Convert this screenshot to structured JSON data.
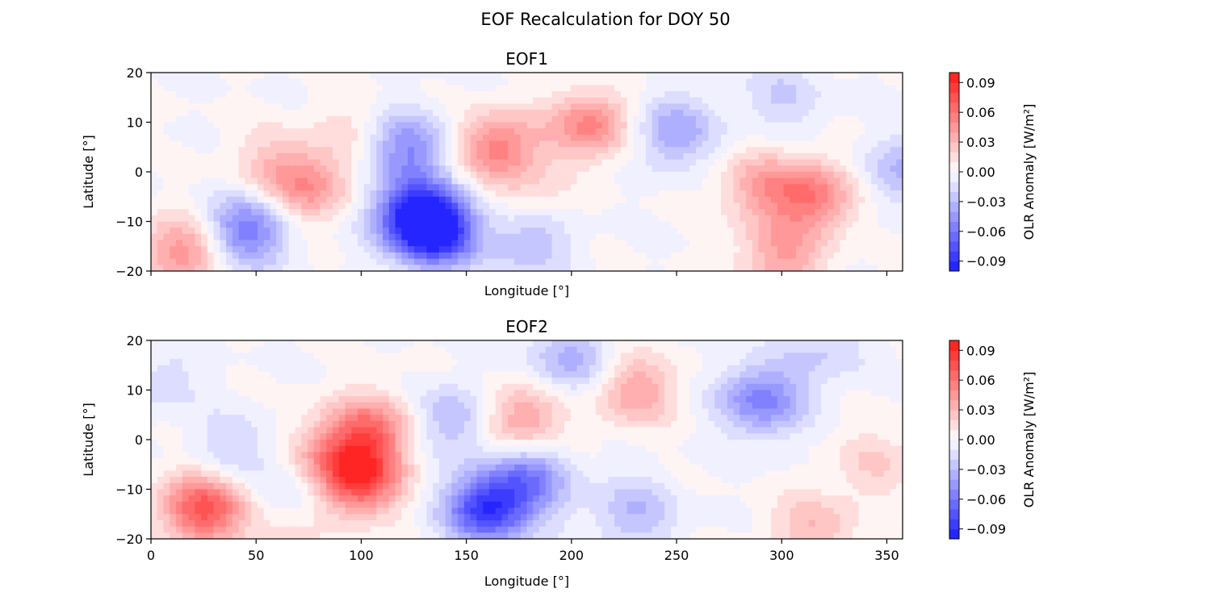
{
  "figure": {
    "title": "EOF Recalculation for DOY 50"
  },
  "colors": {
    "max_red": "#ff1a1a",
    "max_blue": "#1a1aff",
    "neutral": "#ffffff",
    "axis": "#000000"
  },
  "chart_data": [
    {
      "type": "heatmap",
      "title": "EOF1",
      "xlabel": "Longitude [°]",
      "ylabel": "Latitude [°]",
      "xlim": [
        0,
        357.5
      ],
      "ylim": [
        -20,
        20
      ],
      "x_ticks": [
        0,
        50,
        100,
        150,
        200,
        250,
        300,
        350
      ],
      "x_tick_labels": [],
      "y_ticks": [
        -20,
        -10,
        0,
        10,
        20
      ],
      "y_tick_labels": [
        "−20",
        "−10",
        "0",
        "10",
        "20"
      ],
      "colorbar": {
        "label": "OLR Anomaly [W/m²]",
        "range": [
          -0.1,
          0.1
        ],
        "tick_values": [
          0.09,
          0.06,
          0.03,
          0.0,
          -0.03,
          -0.06,
          -0.09
        ],
        "tick_labels": [
          "0.09",
          "0.06",
          "0.03",
          "0.00",
          "−0.03",
          "−0.06",
          "−0.09"
        ]
      },
      "anomaly_centers": [
        {
          "lon": 135,
          "lat": -12,
          "value": -0.095
        },
        {
          "lon": 125,
          "lat": -8,
          "value": -0.07
        },
        {
          "lon": 122,
          "lat": 5,
          "value": -0.05
        },
        {
          "lon": 45,
          "lat": -12,
          "value": -0.06
        },
        {
          "lon": 180,
          "lat": -14,
          "value": -0.03
        },
        {
          "lon": 248,
          "lat": 8,
          "value": -0.04
        },
        {
          "lon": 300,
          "lat": 15,
          "value": -0.02
        },
        {
          "lon": 357,
          "lat": 0,
          "value": -0.03
        },
        {
          "lon": 215,
          "lat": 15,
          "value": -0.01
        },
        {
          "lon": 210,
          "lat": 10,
          "value": 0.06
        },
        {
          "lon": 165,
          "lat": 5,
          "value": 0.055
        },
        {
          "lon": 75,
          "lat": -3,
          "value": 0.045
        },
        {
          "lon": 15,
          "lat": -16,
          "value": 0.05
        },
        {
          "lon": 315,
          "lat": -5,
          "value": 0.055
        },
        {
          "lon": 290,
          "lat": -3,
          "value": 0.035
        },
        {
          "lon": 300,
          "lat": -17,
          "value": 0.04
        },
        {
          "lon": 57,
          "lat": 2,
          "value": 0.02
        },
        {
          "lon": 180,
          "lat": -5,
          "value": 0.015
        },
        {
          "lon": 95,
          "lat": 8,
          "value": 0.015
        }
      ]
    },
    {
      "type": "heatmap",
      "title": "EOF2",
      "xlabel": "Longitude [°]",
      "ylabel": "Latitude [°]",
      "xlim": [
        0,
        357.5
      ],
      "ylim": [
        -20,
        20
      ],
      "x_ticks": [
        0,
        50,
        100,
        150,
        200,
        250,
        300,
        350
      ],
      "x_tick_labels": [
        "0",
        "50",
        "100",
        "150",
        "200",
        "250",
        "300",
        "350"
      ],
      "y_ticks": [
        -20,
        -10,
        0,
        10,
        20
      ],
      "y_tick_labels": [
        "−20",
        "−10",
        "0",
        "10",
        "20"
      ],
      "colorbar": {
        "label": "OLR Anomaly [W/m²]",
        "range": [
          -0.1,
          0.1
        ],
        "tick_values": [
          0.09,
          0.06,
          0.03,
          0.0,
          -0.03,
          -0.06,
          -0.09
        ],
        "tick_labels": [
          "0.09",
          "0.06",
          "0.03",
          "0.00",
          "−0.03",
          "−0.06",
          "−0.09"
        ]
      },
      "anomaly_centers": [
        {
          "lon": 25,
          "lat": -14,
          "value": 0.075
        },
        {
          "lon": 98,
          "lat": -8,
          "value": 0.085
        },
        {
          "lon": 105,
          "lat": 2,
          "value": 0.055
        },
        {
          "lon": 85,
          "lat": -2,
          "value": 0.03
        },
        {
          "lon": 175,
          "lat": 4,
          "value": 0.045
        },
        {
          "lon": 230,
          "lat": 10,
          "value": 0.04
        },
        {
          "lon": 345,
          "lat": -5,
          "value": 0.02
        },
        {
          "lon": 315,
          "lat": -18,
          "value": 0.03
        },
        {
          "lon": 65,
          "lat": -20,
          "value": 0.02
        },
        {
          "lon": 160,
          "lat": -14,
          "value": -0.085
        },
        {
          "lon": 180,
          "lat": -8,
          "value": -0.05
        },
        {
          "lon": 145,
          "lat": 4,
          "value": -0.035
        },
        {
          "lon": 200,
          "lat": 16,
          "value": -0.035
        },
        {
          "lon": 290,
          "lat": 8,
          "value": -0.055
        },
        {
          "lon": 230,
          "lat": -15,
          "value": -0.03
        },
        {
          "lon": 40,
          "lat": -2,
          "value": -0.02
        },
        {
          "lon": 70,
          "lat": -12,
          "value": -0.02
        },
        {
          "lon": 5,
          "lat": 12,
          "value": -0.015
        },
        {
          "lon": 320,
          "lat": 18,
          "value": -0.02
        }
      ]
    }
  ]
}
